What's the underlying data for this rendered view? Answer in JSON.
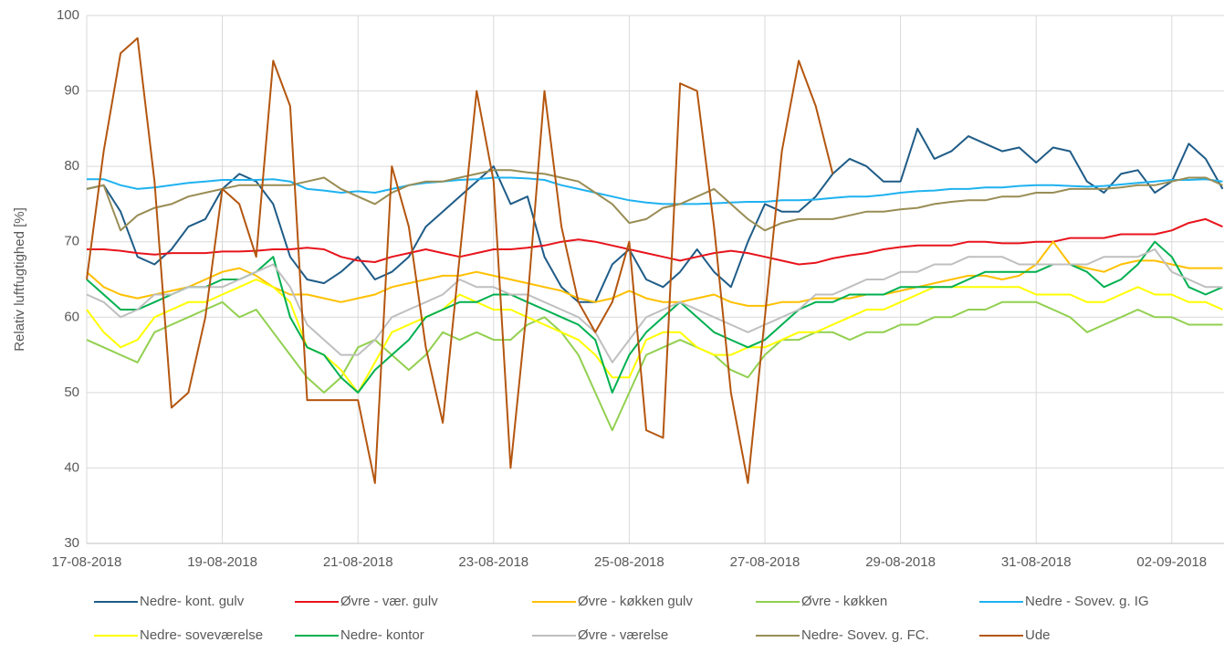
{
  "chart_data": {
    "type": "line",
    "y_label": "Relativ luftfugtighed [%]",
    "x": [
      0,
      0.25,
      0.5,
      0.75,
      1,
      1.25,
      1.5,
      1.75,
      2,
      2.25,
      2.5,
      2.75,
      3,
      3.25,
      3.5,
      3.75,
      4,
      4.25,
      4.5,
      4.75,
      5,
      5.25,
      5.5,
      5.75,
      6,
      6.25,
      6.5,
      6.75,
      7,
      7.25,
      7.5,
      7.75,
      8,
      8.25,
      8.5,
      8.75,
      9,
      9.25,
      9.5,
      9.75,
      10,
      10.25,
      10.5,
      10.75,
      11,
      11.25,
      11.5,
      11.75,
      12,
      12.25,
      12.5,
      12.75,
      13,
      13.25,
      13.5,
      13.75,
      14,
      14.25,
      14.5,
      14.75,
      15,
      15.25,
      15.5,
      15.75,
      16,
      16.25,
      16.5,
      16.75
    ],
    "xlim": [
      0,
      16.77
    ],
    "xticks": [
      {
        "value": 0,
        "label": "17-08-2018"
      },
      {
        "value": 2,
        "label": "19-08-2018"
      },
      {
        "value": 4,
        "label": "21-08-2018"
      },
      {
        "value": 6,
        "label": "23-08-2018"
      },
      {
        "value": 8,
        "label": "25-08-2018"
      },
      {
        "value": 10,
        "label": "27-08-2018"
      },
      {
        "value": 12,
        "label": "29-08-2018"
      },
      {
        "value": 14,
        "label": "31-08-2018"
      },
      {
        "value": 16,
        "label": "02-09-2018"
      }
    ],
    "ylim": [
      30,
      100
    ],
    "yticks": [
      30,
      40,
      50,
      60,
      70,
      80,
      90,
      100
    ],
    "grid": true,
    "legend": "bottom",
    "series": [
      {
        "name": "Nedre- kont. gulv",
        "color": "#1f5c87",
        "values": [
          77,
          77.5,
          74,
          68,
          67,
          69,
          72,
          73,
          77,
          79,
          78,
          75,
          68,
          65,
          64.5,
          66,
          68,
          65,
          66,
          68,
          72,
          74,
          76,
          78,
          80,
          75,
          76,
          68,
          64,
          62,
          62,
          67,
          69,
          65,
          64,
          66,
          69,
          66,
          64,
          70,
          75,
          74,
          74,
          76,
          79,
          81,
          80,
          78,
          78,
          85,
          81,
          82,
          84,
          83,
          82,
          82.5,
          80.5,
          82.5,
          82,
          78,
          76.5,
          79,
          79.5,
          76.5,
          78,
          83,
          81,
          77
        ]
      },
      {
        "name": "Øvre - vær. gulv",
        "color": "#e8141c",
        "values": [
          69,
          69,
          68.8,
          68.5,
          68.3,
          68.5,
          68.5,
          68.5,
          68.7,
          68.7,
          68.8,
          69,
          69,
          69.2,
          69,
          68,
          67.5,
          67.3,
          68,
          68.5,
          69,
          68.5,
          68,
          68.5,
          69,
          69,
          69.2,
          69.5,
          70,
          70.3,
          70,
          69.5,
          69,
          68.5,
          68,
          67.5,
          68,
          68.5,
          68.8,
          68.5,
          68,
          67.5,
          67,
          67.2,
          67.8,
          68.2,
          68.5,
          69,
          69.3,
          69.5,
          69.5,
          69.5,
          70,
          70,
          69.8,
          69.8,
          70,
          70,
          70.5,
          70.5,
          70.5,
          71,
          71,
          71,
          71.5,
          72.5,
          73,
          72
        ]
      },
      {
        "name": "Øvre - køkken gulv",
        "color": "#ffc000",
        "values": [
          66,
          64,
          63,
          62.5,
          63,
          63.5,
          64,
          65,
          66,
          66.5,
          65.5,
          64,
          63,
          63,
          62.5,
          62,
          62.5,
          63,
          64,
          64.5,
          65,
          65.5,
          65.5,
          66,
          65.5,
          65,
          64.5,
          64,
          63.5,
          62.5,
          62,
          62.5,
          63.5,
          62.5,
          62,
          62,
          62.5,
          63,
          62,
          61.5,
          61.5,
          62,
          62,
          62.5,
          62.5,
          62.5,
          63,
          63,
          63.5,
          64,
          64.5,
          65,
          65.5,
          65.5,
          65,
          65.5,
          67,
          70,
          67,
          66.5,
          66,
          67,
          67.5,
          67.5,
          67,
          66.5,
          66.5,
          66.5
        ]
      },
      {
        "name": "Øvre - køkken",
        "color": "#92d050",
        "values": [
          57,
          56,
          55,
          54,
          58,
          59,
          60,
          61,
          62,
          60,
          61,
          58,
          55,
          52,
          50,
          52,
          56,
          57,
          55,
          53,
          55,
          58,
          57,
          58,
          57,
          57,
          59,
          60,
          58,
          55,
          50,
          45,
          50,
          55,
          56,
          57,
          56,
          55,
          53,
          52,
          55,
          57,
          57,
          58,
          58,
          57,
          58,
          58,
          59,
          59,
          60,
          60,
          61,
          61,
          62,
          62,
          62,
          61,
          60,
          58,
          59,
          60,
          61,
          60,
          60,
          59,
          59,
          59
        ]
      },
      {
        "name": "Nedre - Sovev. g. IG",
        "color": "#1fb2f0",
        "values": [
          78.3,
          78.3,
          77.5,
          77,
          77.2,
          77.5,
          77.8,
          78,
          78.2,
          78.2,
          78.2,
          78.3,
          78,
          77,
          76.8,
          76.5,
          76.7,
          76.5,
          77,
          77.5,
          77.8,
          78,
          78.2,
          78.3,
          78.5,
          78.5,
          78.4,
          78.2,
          77.5,
          77,
          76.5,
          76,
          75.5,
          75.2,
          75,
          75,
          75,
          75.1,
          75.2,
          75.3,
          75.3,
          75.5,
          75.5,
          75.6,
          75.8,
          76,
          76,
          76.2,
          76.5,
          76.7,
          76.8,
          77,
          77,
          77.2,
          77.2,
          77.4,
          77.5,
          77.5,
          77.4,
          77.3,
          77.4,
          77.6,
          77.8,
          78,
          78.2,
          78.2,
          78.3,
          78
        ]
      },
      {
        "name": "Nedre- soveværelse",
        "color": "#ffff00",
        "values": [
          61,
          58,
          56,
          57,
          60,
          61,
          62,
          62,
          63,
          64,
          65,
          64,
          62,
          56,
          55,
          53,
          50,
          54,
          58,
          59,
          60,
          61,
          63,
          62,
          61,
          61,
          60,
          59,
          58,
          57,
          55,
          52,
          52,
          57,
          58,
          58,
          56,
          55,
          55,
          56,
          56,
          57,
          58,
          58,
          59,
          60,
          61,
          61,
          62,
          63,
          64,
          64,
          64,
          64,
          64,
          64,
          63,
          63,
          63,
          62,
          62,
          63,
          64,
          63,
          63,
          62,
          62,
          61
        ]
      },
      {
        "name": "Nedre- kontor",
        "color": "#00b050",
        "values": [
          65,
          63,
          61,
          61,
          62,
          63,
          64,
          64,
          65,
          65,
          66,
          68,
          60,
          56,
          55,
          52,
          50,
          53,
          55,
          57,
          60,
          61,
          62,
          62,
          63,
          63,
          62,
          61,
          60,
          59,
          57,
          50,
          55,
          58,
          60,
          62,
          60,
          58,
          57,
          56,
          57,
          59,
          61,
          62,
          62,
          63,
          63,
          63,
          64,
          64,
          64,
          64,
          65,
          66,
          66,
          66,
          66,
          67,
          67,
          66,
          64,
          65,
          67,
          70,
          68,
          64,
          63,
          64
        ]
      },
      {
        "name": "Øvre - værelse",
        "color": "#bfbfbf",
        "values": [
          63,
          62,
          60,
          61,
          63,
          63,
          64,
          64,
          64,
          65,
          66,
          67,
          64,
          59,
          57,
          55,
          55,
          57,
          60,
          61,
          62,
          63,
          65,
          64,
          64,
          63,
          63,
          62,
          61,
          60,
          58,
          54,
          57,
          60,
          61,
          62,
          61,
          60,
          59,
          58,
          59,
          60,
          61,
          63,
          63,
          64,
          65,
          65,
          66,
          66,
          67,
          67,
          68,
          68,
          68,
          67,
          67,
          67,
          67,
          67,
          68,
          68,
          68,
          69,
          66,
          65,
          64,
          64
        ]
      },
      {
        "name": "Nedre- Sovev. g. FC.",
        "color": "#998d55",
        "values": [
          77,
          77.5,
          71.5,
          73.5,
          74.5,
          75,
          76,
          76.5,
          77,
          77.5,
          77.5,
          77.5,
          77.5,
          78,
          78.5,
          77,
          76,
          75,
          76.5,
          77.5,
          78,
          78,
          78.5,
          79,
          79.5,
          79.5,
          79.2,
          79,
          78.5,
          78,
          76.5,
          75,
          72.5,
          73,
          74.5,
          75,
          76,
          77,
          75,
          73,
          71.5,
          72.5,
          73,
          73,
          73,
          73.5,
          74,
          74,
          74.3,
          74.5,
          75,
          75.3,
          75.5,
          75.5,
          76,
          76,
          76.5,
          76.5,
          77,
          77,
          77,
          77.2,
          77.5,
          77.5,
          78,
          78.5,
          78.5,
          77.5
        ]
      },
      {
        "name": "Ude",
        "color": "#b4560f",
        "values": [
          65,
          82,
          95,
          97,
          78,
          48,
          50,
          60,
          77,
          75,
          68,
          94,
          88,
          49,
          49,
          49,
          49,
          38,
          80,
          72,
          56,
          46,
          68,
          90,
          78,
          40,
          62,
          90,
          72,
          62,
          58,
          62,
          70,
          45,
          44,
          91,
          90,
          72,
          50,
          38,
          60,
          82,
          94,
          88,
          79,
          null,
          null,
          null,
          null,
          null,
          null,
          null,
          null,
          null,
          null,
          null,
          null,
          null,
          null,
          null,
          null,
          null,
          null,
          null,
          null,
          null,
          null,
          null
        ]
      }
    ]
  }
}
